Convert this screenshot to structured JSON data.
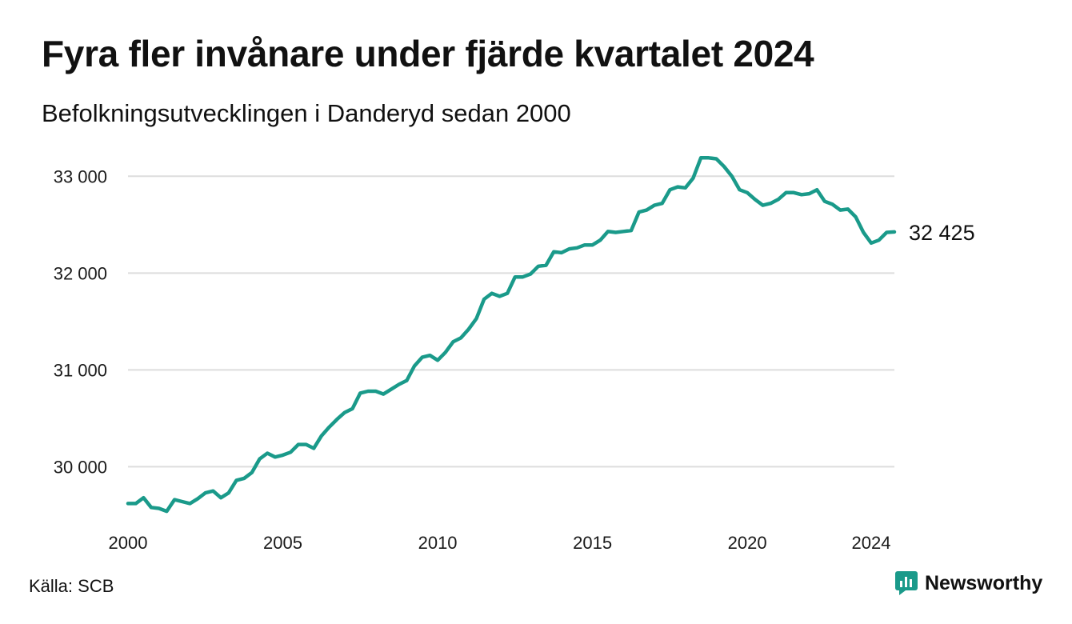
{
  "title": "Fyra fler invånare under fjärde kvartalet 2024",
  "subtitle": "Befolkningsutvecklingen i Danderyd sedan 2000",
  "source": "Källa: SCB",
  "brand": {
    "name": "Newsworthy",
    "color": "#1a9a8a",
    "icon": "newsworthy-logo-icon"
  },
  "colors": {
    "line": "#1a9a8a",
    "grid": "#dddddd",
    "text": "#111111"
  },
  "chart_data": {
    "type": "line",
    "title": "Fyra fler invånare under fjärde kvartalet 2024",
    "subtitle": "Befolkningsutvecklingen i Danderyd sedan 2000",
    "xlabel": "",
    "ylabel": "",
    "x_ticks": [
      2000,
      2005,
      2010,
      2015,
      2020,
      2024
    ],
    "x_tick_labels": [
      "2000",
      "2005",
      "2010",
      "2015",
      "2020",
      "2024"
    ],
    "y_ticks": [
      30000,
      31000,
      32000,
      33000
    ],
    "y_tick_labels": [
      "30 000",
      "31 000",
      "32 000",
      "33 000"
    ],
    "xlim": [
      2000,
      2024.75
    ],
    "ylim": [
      29450,
      33250
    ],
    "grid": "horizontal",
    "end_label": "32 425",
    "series": [
      {
        "x": [
          2000,
          2000.25,
          2000.5,
          2000.75,
          2001,
          2001.25,
          2001.5,
          2001.75,
          2002,
          2002.25,
          2002.5,
          2002.75,
          2003,
          2003.25,
          2003.5,
          2003.75,
          2004,
          2004.25,
          2004.5,
          2004.75,
          2005,
          2005.25,
          2005.5,
          2005.75,
          2006,
          2006.25,
          2006.5,
          2006.75,
          2007,
          2007.25,
          2007.5,
          2007.75,
          2008,
          2008.25,
          2008.5,
          2008.75,
          2009,
          2009.25,
          2009.5,
          2009.75,
          2010,
          2010.25,
          2010.5,
          2010.75,
          2011,
          2011.25,
          2011.5,
          2011.75,
          2012,
          2012.25,
          2012.5,
          2012.75,
          2013,
          2013.25,
          2013.5,
          2013.75,
          2014,
          2014.25,
          2014.5,
          2014.75,
          2015,
          2015.25,
          2015.5,
          2015.75,
          2016,
          2016.25,
          2016.5,
          2016.75,
          2017,
          2017.25,
          2017.5,
          2017.75,
          2018,
          2018.25,
          2018.5,
          2018.75,
          2019,
          2019.25,
          2019.5,
          2019.75,
          2020,
          2020.25,
          2020.5,
          2020.75,
          2021,
          2021.25,
          2021.5,
          2021.75,
          2022,
          2022.25,
          2022.5,
          2022.75,
          2023,
          2023.25,
          2023.5,
          2023.75,
          2024,
          2024.25,
          2024.5,
          2024.75
        ],
        "values": [
          29620,
          29620,
          29680,
          29580,
          29570,
          29540,
          29660,
          29640,
          29620,
          29670,
          29730,
          29750,
          29680,
          29730,
          29860,
          29880,
          29940,
          30080,
          30140,
          30100,
          30120,
          30150,
          30230,
          30230,
          30190,
          30320,
          30410,
          30490,
          30560,
          30600,
          30760,
          30780,
          30780,
          30750,
          30800,
          30850,
          30890,
          31040,
          31130,
          31150,
          31100,
          31180,
          31290,
          31330,
          31420,
          31530,
          31730,
          31790,
          31760,
          31790,
          31960,
          31960,
          31990,
          32070,
          32080,
          32220,
          32210,
          32250,
          32260,
          32290,
          32290,
          32340,
          32430,
          32420,
          32430,
          32440,
          32630,
          32650,
          32700,
          32720,
          32860,
          32890,
          32880,
          32980,
          33190,
          33190,
          33180,
          33100,
          33000,
          32860,
          32830,
          32760,
          32700,
          32720,
          32760,
          32830,
          32830,
          32810,
          32820,
          32860,
          32740,
          32710,
          32650,
          32660,
          32580,
          32420,
          32310,
          32340,
          32420,
          32425
        ]
      }
    ]
  }
}
